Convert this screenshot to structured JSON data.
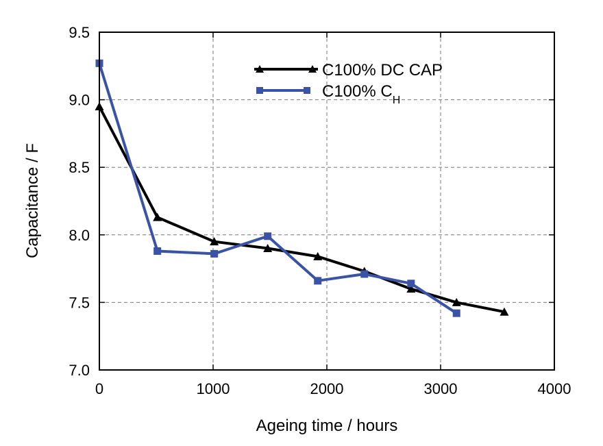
{
  "chart_data": {
    "type": "line",
    "xlabel": "Ageing time / hours",
    "ylabel": "Capacitance / F",
    "xlim": [
      0,
      4000
    ],
    "ylim": [
      7.0,
      9.5
    ],
    "x_ticks": [
      "0",
      "1000",
      "2000",
      "3000",
      "4000"
    ],
    "y_ticks": [
      "7.0",
      "7.5",
      "8.0",
      "8.5",
      "9.0",
      "9.5"
    ],
    "grid": true,
    "legend_position": "top-right",
    "series": [
      {
        "name": "C100% DC CAP",
        "marker": "triangle",
        "color": "#000000",
        "x": [
          0,
          510,
          1010,
          1480,
          1920,
          2330,
          2740,
          3140,
          3560
        ],
        "y": [
          8.95,
          8.13,
          7.95,
          7.9,
          7.84,
          7.73,
          7.6,
          7.5,
          7.43
        ]
      },
      {
        "name_main": "C100% C",
        "name_sub": "H",
        "marker": "square",
        "color": "#3a53a4",
        "x": [
          0,
          510,
          1010,
          1480,
          1920,
          2330,
          2740,
          3140
        ],
        "y": [
          9.27,
          7.88,
          7.86,
          7.99,
          7.66,
          7.71,
          7.64,
          7.42
        ]
      }
    ]
  }
}
